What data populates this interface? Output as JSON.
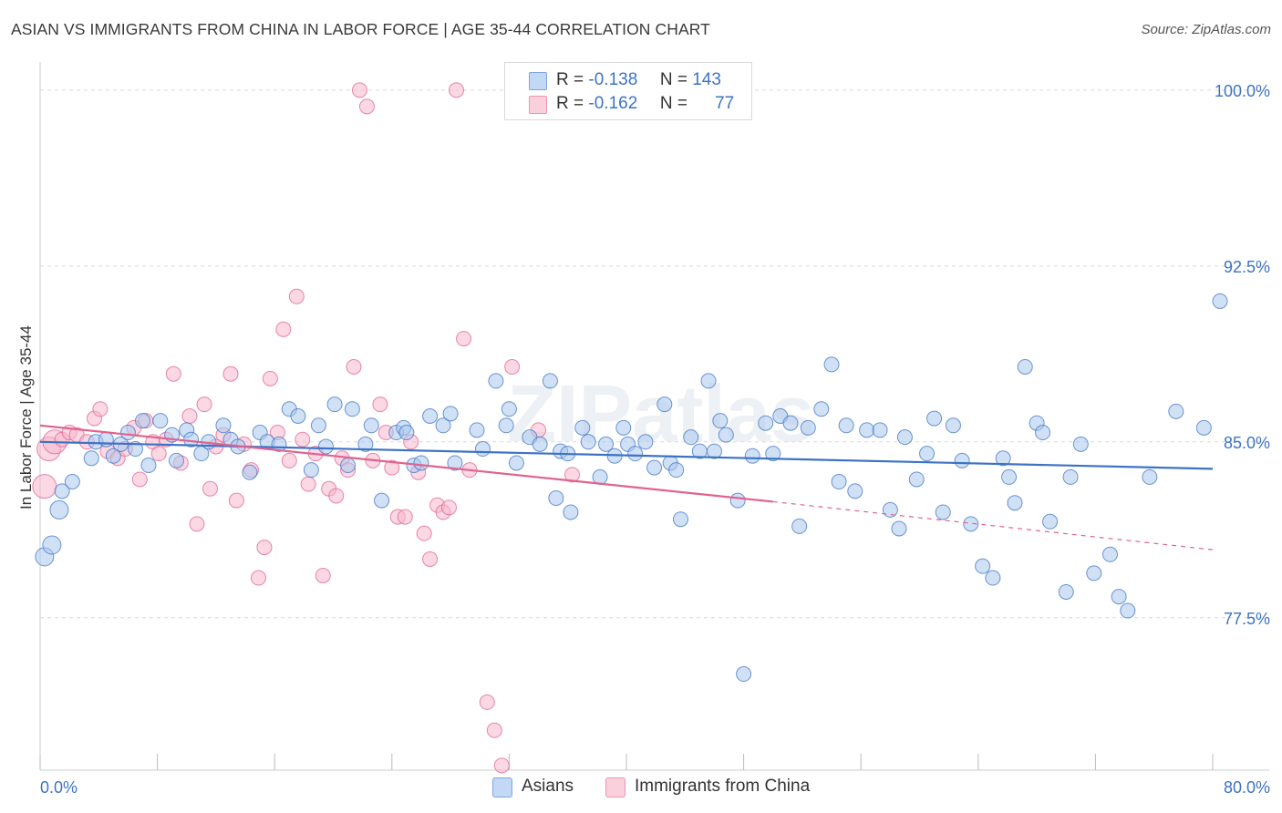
{
  "title": "ASIAN VS IMMIGRANTS FROM CHINA IN LABOR FORCE | AGE 35-44 CORRELATION CHART",
  "source": "Source: ZipAtlas.com",
  "watermark": "ZIPatlas",
  "legend_top": [
    {
      "r_label": "R =",
      "r_value": "-0.138",
      "n_label": "N =",
      "n_value": "143",
      "color": "#a9c8ef"
    },
    {
      "r_label": "R =",
      "r_value": "-0.162",
      "n_label": "N =",
      "n_value": "77",
      "color": "#f7b8cc"
    }
  ],
  "legend_bottom": [
    {
      "label": "Asians",
      "color": "#a9c8ef"
    },
    {
      "label": "Immigrants from China",
      "color": "#f7b8cc"
    }
  ],
  "chart_data": {
    "type": "scatter",
    "title": "ASIAN VS IMMIGRANTS FROM CHINA IN LABOR FORCE | AGE 35-44 CORRELATION CHART",
    "xlabel": "",
    "ylabel": "In Labor Force | Age 35-44",
    "xlim": [
      0,
      80
    ],
    "ylim": [
      71.0,
      101.2
    ],
    "x_tick_labels": [
      "0.0%",
      "80.0%"
    ],
    "y_ticks": [
      77.5,
      85.0,
      92.5,
      100.0
    ],
    "y_tick_labels": [
      "77.5%",
      "85.0%",
      "92.5%",
      "100.0%"
    ],
    "grid": true,
    "colors": {
      "asians": "#3d73c5",
      "asians_fill": "#a9c8ef",
      "china": "#e0628f",
      "china_fill": "#f7b8cc",
      "axis_text": "#3d73c5"
    },
    "series": [
      {
        "name": "Asians",
        "trend": {
          "x": [
            0,
            80
          ],
          "y": [
            85.0,
            83.85
          ]
        },
        "points": [
          [
            0.3,
            80.1
          ],
          [
            0.8,
            80.6
          ],
          [
            1.3,
            82.1
          ],
          [
            1.5,
            82.9
          ],
          [
            2.2,
            83.3
          ],
          [
            3.5,
            84.3
          ],
          [
            3.8,
            85.0
          ],
          [
            4.5,
            85.1
          ],
          [
            5.0,
            84.4
          ],
          [
            5.5,
            84.9
          ],
          [
            6.0,
            85.4
          ],
          [
            6.5,
            84.7
          ],
          [
            7.0,
            85.9
          ],
          [
            7.4,
            84.0
          ],
          [
            8.2,
            85.9
          ],
          [
            9.0,
            85.3
          ],
          [
            9.3,
            84.2
          ],
          [
            10.0,
            85.5
          ],
          [
            10.3,
            85.1
          ],
          [
            11.0,
            84.5
          ],
          [
            11.5,
            85.0
          ],
          [
            12.5,
            85.7
          ],
          [
            13.0,
            85.1
          ],
          [
            13.5,
            84.8
          ],
          [
            14.3,
            83.7
          ],
          [
            15.0,
            85.4
          ],
          [
            15.5,
            85.0
          ],
          [
            16.3,
            84.9
          ],
          [
            17.0,
            86.4
          ],
          [
            17.6,
            86.1
          ],
          [
            18.5,
            83.8
          ],
          [
            19.0,
            85.7
          ],
          [
            19.5,
            84.8
          ],
          [
            20.1,
            86.6
          ],
          [
            21.0,
            84.0
          ],
          [
            21.3,
            86.4
          ],
          [
            22.2,
            84.9
          ],
          [
            22.6,
            85.7
          ],
          [
            23.3,
            82.5
          ],
          [
            24.3,
            85.4
          ],
          [
            24.8,
            85.6
          ],
          [
            25.0,
            85.4
          ],
          [
            25.5,
            84.0
          ],
          [
            26.0,
            84.1
          ],
          [
            26.6,
            86.1
          ],
          [
            27.5,
            85.7
          ],
          [
            28.0,
            86.2
          ],
          [
            28.3,
            84.1
          ],
          [
            29.8,
            85.5
          ],
          [
            30.2,
            84.7
          ],
          [
            31.1,
            87.6
          ],
          [
            31.8,
            85.7
          ],
          [
            32.0,
            86.4
          ],
          [
            32.5,
            84.1
          ],
          [
            33.4,
            85.2
          ],
          [
            34.1,
            84.9
          ],
          [
            34.8,
            87.6
          ],
          [
            35.2,
            82.6
          ],
          [
            35.5,
            84.6
          ],
          [
            36.0,
            84.5
          ],
          [
            36.2,
            82.0
          ],
          [
            37.0,
            85.6
          ],
          [
            37.4,
            85.0
          ],
          [
            38.2,
            83.5
          ],
          [
            38.6,
            84.9
          ],
          [
            39.2,
            84.4
          ],
          [
            39.8,
            85.6
          ],
          [
            40.1,
            84.9
          ],
          [
            40.6,
            84.5
          ],
          [
            41.3,
            85.0
          ],
          [
            41.9,
            83.9
          ],
          [
            42.6,
            86.6
          ],
          [
            43.0,
            84.1
          ],
          [
            43.4,
            83.8
          ],
          [
            43.7,
            81.7
          ],
          [
            44.4,
            85.2
          ],
          [
            45.0,
            84.6
          ],
          [
            45.6,
            87.6
          ],
          [
            46.0,
            84.6
          ],
          [
            46.4,
            85.9
          ],
          [
            46.8,
            85.3
          ],
          [
            47.6,
            82.5
          ],
          [
            48.0,
            75.1
          ],
          [
            48.6,
            84.4
          ],
          [
            49.5,
            85.8
          ],
          [
            50.0,
            84.5
          ],
          [
            50.5,
            86.1
          ],
          [
            51.2,
            85.8
          ],
          [
            51.8,
            81.4
          ],
          [
            52.4,
            85.6
          ],
          [
            53.3,
            86.4
          ],
          [
            54.0,
            88.3
          ],
          [
            54.5,
            83.3
          ],
          [
            55.0,
            85.7
          ],
          [
            55.6,
            82.9
          ],
          [
            56.4,
            85.5
          ],
          [
            57.3,
            85.5
          ],
          [
            58.0,
            82.1
          ],
          [
            58.6,
            81.3
          ],
          [
            59.0,
            85.2
          ],
          [
            59.8,
            83.4
          ],
          [
            60.5,
            84.5
          ],
          [
            61.0,
            86.0
          ],
          [
            61.6,
            82.0
          ],
          [
            62.3,
            85.7
          ],
          [
            62.9,
            84.2
          ],
          [
            63.5,
            81.5
          ],
          [
            64.3,
            79.7
          ],
          [
            65.0,
            79.2
          ],
          [
            65.7,
            84.3
          ],
          [
            66.1,
            83.5
          ],
          [
            66.5,
            82.4
          ],
          [
            67.2,
            88.2
          ],
          [
            68.0,
            85.8
          ],
          [
            68.4,
            85.4
          ],
          [
            68.9,
            81.6
          ],
          [
            70.0,
            78.6
          ],
          [
            70.3,
            83.5
          ],
          [
            71.0,
            84.9
          ],
          [
            71.9,
            79.4
          ],
          [
            73.0,
            80.2
          ],
          [
            73.6,
            78.4
          ],
          [
            74.2,
            77.8
          ],
          [
            75.7,
            83.5
          ],
          [
            77.5,
            86.3
          ],
          [
            79.4,
            85.6
          ],
          [
            80.5,
            91.0
          ]
        ]
      },
      {
        "name": "Immigrants from China",
        "trend": {
          "x": [
            0,
            50
          ],
          "y": [
            85.7,
            82.45
          ]
        },
        "trend_dashed": {
          "x": [
            50,
            80
          ],
          "y": [
            82.45,
            80.4
          ]
        },
        "points": [
          [
            0.3,
            83.1
          ],
          [
            0.6,
            84.7
          ],
          [
            1.0,
            85.0
          ],
          [
            1.5,
            85.1
          ],
          [
            2.0,
            85.4
          ],
          [
            2.5,
            85.3
          ],
          [
            3.2,
            85.0
          ],
          [
            3.7,
            86.0
          ],
          [
            4.1,
            86.4
          ],
          [
            4.6,
            84.6
          ],
          [
            5.3,
            84.3
          ],
          [
            5.8,
            84.7
          ],
          [
            6.4,
            85.6
          ],
          [
            6.8,
            83.4
          ],
          [
            7.2,
            85.9
          ],
          [
            7.7,
            85.0
          ],
          [
            8.1,
            84.5
          ],
          [
            8.6,
            85.1
          ],
          [
            9.1,
            87.9
          ],
          [
            9.6,
            84.1
          ],
          [
            10.2,
            86.1
          ],
          [
            10.7,
            81.5
          ],
          [
            11.2,
            86.6
          ],
          [
            11.6,
            83.0
          ],
          [
            12.0,
            84.8
          ],
          [
            12.5,
            85.3
          ],
          [
            13.0,
            87.9
          ],
          [
            13.4,
            82.5
          ],
          [
            13.9,
            84.9
          ],
          [
            14.4,
            83.8
          ],
          [
            14.9,
            79.2
          ],
          [
            15.3,
            80.5
          ],
          [
            15.7,
            87.7
          ],
          [
            16.2,
            85.4
          ],
          [
            16.6,
            89.8
          ],
          [
            17.0,
            84.2
          ],
          [
            17.5,
            91.2
          ],
          [
            17.9,
            85.1
          ],
          [
            18.3,
            83.2
          ],
          [
            18.8,
            84.5
          ],
          [
            19.3,
            79.3
          ],
          [
            19.7,
            83.0
          ],
          [
            20.2,
            82.7
          ],
          [
            20.6,
            84.3
          ],
          [
            21.0,
            83.8
          ],
          [
            21.4,
            88.2
          ],
          [
            21.8,
            100.0
          ],
          [
            22.3,
            99.3
          ],
          [
            22.7,
            84.2
          ],
          [
            23.2,
            86.6
          ],
          [
            23.6,
            85.4
          ],
          [
            24.0,
            83.9
          ],
          [
            24.4,
            81.8
          ],
          [
            24.9,
            81.8
          ],
          [
            25.3,
            85.0
          ],
          [
            25.8,
            83.7
          ],
          [
            26.2,
            81.1
          ],
          [
            26.6,
            80.0
          ],
          [
            27.1,
            82.3
          ],
          [
            27.5,
            82.0
          ],
          [
            27.9,
            82.2
          ],
          [
            28.4,
            100.0
          ],
          [
            28.9,
            89.4
          ],
          [
            29.3,
            83.8
          ],
          [
            30.5,
            73.9
          ],
          [
            31.0,
            72.7
          ],
          [
            31.5,
            71.2
          ],
          [
            32.2,
            88.2
          ],
          [
            34.0,
            85.5
          ],
          [
            36.3,
            83.6
          ]
        ]
      }
    ]
  }
}
